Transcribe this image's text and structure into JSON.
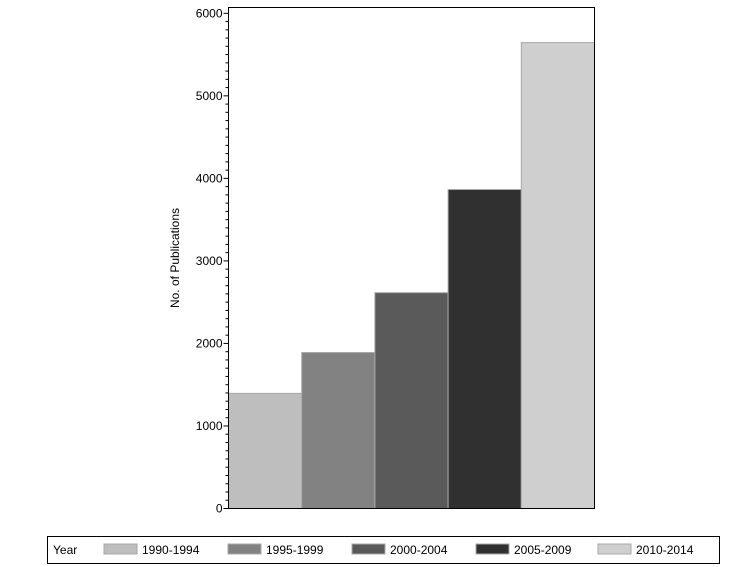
{
  "chart_data": {
    "type": "bar",
    "categories": [
      "1990-1994",
      "1995-1999",
      "2000-2004",
      "2005-2009",
      "2010-2014"
    ],
    "values": [
      1395,
      1890,
      2615,
      3865,
      5645
    ],
    "colors": [
      "#bebebe",
      "#828282",
      "#5a5a5a",
      "#303030",
      "#cfcfcf"
    ],
    "ylabel": "No. of Publications",
    "xlabel": "",
    "ylim": [
      0,
      6000
    ],
    "yticks": [
      "0",
      "1000",
      "2000",
      "3000",
      "4000",
      "5000",
      "6000"
    ],
    "legend": {
      "title": "Year",
      "placement": "bottom"
    },
    "grid": false
  }
}
